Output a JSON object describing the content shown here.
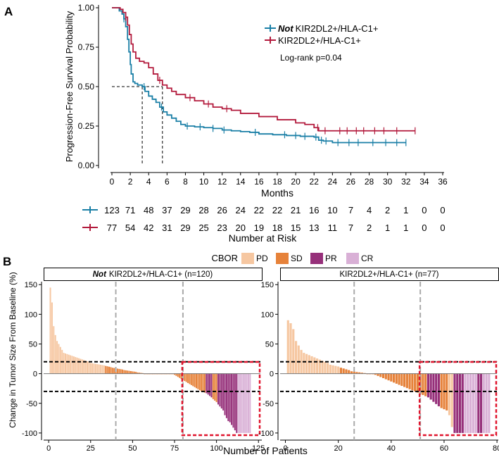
{
  "figure": {
    "panel_a_label": "A",
    "panel_b_label": "B"
  },
  "colors": {
    "not_group": "#1a7fa6",
    "group": "#b31b3d",
    "PD": "#f6c7a1",
    "SD": "#e6823a",
    "PR": "#96307a",
    "CR": "#d9b0d6",
    "highlight": "#e0142d"
  },
  "chart_data": [
    {
      "type": "line",
      "subtype": "kaplan-meier",
      "ylabel": "Progression-Free Survival Probability",
      "xlabel": "Months",
      "xlim": [
        0,
        36
      ],
      "ylim": [
        0,
        1
      ],
      "xticks": [
        "0",
        "2",
        "4",
        "6",
        "8",
        "10",
        "12",
        "14",
        "16",
        "18",
        "20",
        "22",
        "24",
        "26",
        "28",
        "30",
        "32",
        "34",
        "36"
      ],
      "yticks": [
        "0.00",
        "0.25",
        "0.50",
        "0.75",
        "1.00"
      ],
      "legend": {
        "not_prefix": "Not",
        "not_label": "KIR2DL2+/HLA-C1+",
        "label": "KIR2DL2+/HLA-C1+"
      },
      "pvalue_text": "Log-rank p=0.04",
      "medians": [
        3.3,
        5.5
      ],
      "series": [
        {
          "name": "Not KIR2DL2+/HLA-C1+",
          "color_key": "not_group",
          "x": [
            0,
            0.8,
            1.1,
            1.3,
            1.5,
            1.7,
            1.85,
            2.0,
            2.1,
            2.3,
            2.5,
            2.8,
            3.0,
            3.3,
            3.6,
            4.0,
            4.4,
            4.8,
            5.2,
            5.6,
            6.0,
            6.5,
            7.0,
            7.5,
            8.0,
            9.0,
            10.0,
            11.0,
            12.0,
            13.0,
            14.0,
            15.0,
            16.0,
            17.5,
            19.0,
            20.5,
            22.0,
            22.5,
            23.0,
            24.0,
            26.0,
            28.0,
            30.0,
            32.0
          ],
          "y": [
            1.0,
            0.98,
            0.96,
            0.93,
            0.88,
            0.8,
            0.72,
            0.64,
            0.58,
            0.53,
            0.52,
            0.51,
            0.51,
            0.5,
            0.47,
            0.44,
            0.42,
            0.4,
            0.37,
            0.34,
            0.32,
            0.3,
            0.28,
            0.26,
            0.25,
            0.245,
            0.24,
            0.235,
            0.225,
            0.22,
            0.215,
            0.21,
            0.2,
            0.195,
            0.19,
            0.185,
            0.18,
            0.16,
            0.155,
            0.145,
            0.145,
            0.145,
            0.145,
            0.145
          ],
          "censor_x": [
            1.3,
            3.5,
            5.4,
            8.2,
            9.6,
            11.0,
            12.2,
            15.6,
            18.8,
            20.0,
            21.0,
            22.2,
            22.8,
            23.3,
            24.6,
            25.8,
            26.8,
            28.4,
            29.8,
            31.0,
            32.0
          ]
        },
        {
          "name": "KIR2DL2+/HLA-C1+",
          "color_key": "group",
          "x": [
            0,
            0.9,
            1.2,
            1.5,
            1.7,
            1.9,
            2.1,
            2.3,
            2.6,
            3.0,
            3.5,
            4.0,
            4.5,
            5.0,
            5.5,
            6.0,
            6.5,
            7.0,
            8.0,
            9.0,
            10.0,
            11.0,
            12.0,
            13.0,
            14.0,
            16.0,
            18.0,
            20.0,
            21.0,
            22.0,
            22.5,
            24.0,
            26.0,
            28.0,
            30.0,
            33.0
          ],
          "y": [
            1.0,
            0.99,
            0.97,
            0.94,
            0.89,
            0.83,
            0.77,
            0.72,
            0.68,
            0.66,
            0.65,
            0.62,
            0.58,
            0.54,
            0.51,
            0.49,
            0.47,
            0.45,
            0.43,
            0.41,
            0.39,
            0.37,
            0.36,
            0.35,
            0.33,
            0.31,
            0.29,
            0.27,
            0.26,
            0.24,
            0.22,
            0.22,
            0.22,
            0.22,
            0.22,
            0.22
          ],
          "censor_x": [
            1.5,
            5.2,
            8.5,
            10.5,
            12.5,
            22.4,
            23.2,
            24.8,
            25.6,
            26.6,
            27.4,
            28.6,
            29.6,
            31.0,
            33.0
          ]
        }
      ],
      "risk_table": {
        "title": "Number at Risk",
        "rows": [
          {
            "color_key": "not_group",
            "values": [
              "123",
              "71",
              "48",
              "37",
              "29",
              "28",
              "26",
              "24",
              "22",
              "22",
              "21",
              "16",
              "10",
              "7",
              "4",
              "2",
              "1",
              "0",
              "0"
            ]
          },
          {
            "color_key": "group",
            "values": [
              "77",
              "54",
              "42",
              "31",
              "29",
              "25",
              "23",
              "20",
              "19",
              "18",
              "15",
              "13",
              "11",
              "7",
              "2",
              "1",
              "1",
              "0",
              "0"
            ]
          }
        ]
      }
    },
    {
      "type": "bar",
      "subtype": "waterfall",
      "legend_title": "CBOR",
      "legend_items": [
        "PD",
        "SD",
        "PR",
        "CR"
      ],
      "ylabel": "Change in Tumor Size From Baseline (%)",
      "xlabel": "Number of Patients",
      "reference_lines": [
        20,
        -30
      ],
      "panels": [
        {
          "title_prefix": "Not",
          "title_rest": "KIR2DL2+/HLA-C1+ (n=120)",
          "n": 120,
          "xlim": [
            -3,
            127
          ],
          "ylim": [
            -112,
            155
          ],
          "xticks": [
            "0",
            "25",
            "50",
            "75",
            "100",
            "125"
          ],
          "yticks": [
            "150",
            "100",
            "50",
            "0",
            "-50",
            "-100"
          ],
          "vlines": [
            40,
            80
          ],
          "highlight_from": 80,
          "segments": [
            {
              "from": 1,
              "to": 1,
              "start": 145,
              "end": 145,
              "cls": "PD"
            },
            {
              "from": 2,
              "to": 2,
              "start": 120,
              "end": 120,
              "cls": "PD"
            },
            {
              "from": 3,
              "to": 4,
              "start": 80,
              "end": 65,
              "cls": "PD"
            },
            {
              "from": 5,
              "to": 8,
              "start": 55,
              "end": 40,
              "cls": "PD"
            },
            {
              "from": 9,
              "to": 24,
              "start": 35,
              "end": 20,
              "cls": "PD"
            },
            {
              "from": 25,
              "to": 33,
              "start": 18,
              "end": 14,
              "cls": "PD"
            },
            {
              "from": 34,
              "to": 37,
              "start": 13,
              "end": 11,
              "cls": "SD"
            },
            {
              "from": 38,
              "to": 44,
              "start": 10,
              "end": 7,
              "cls": "SD"
            },
            {
              "from": 45,
              "to": 52,
              "start": 6,
              "end": 3,
              "cls": "SD"
            },
            {
              "from": 53,
              "to": 56,
              "start": 2,
              "end": 1,
              "cls": "SD"
            },
            {
              "from": 57,
              "to": 74,
              "start": 0,
              "end": 0,
              "cls": "SD"
            },
            {
              "from": 75,
              "to": 90,
              "start": -2,
              "end": -28,
              "cls": "SD"
            },
            {
              "from": 91,
              "to": 93,
              "start": -30,
              "end": -32,
              "cls": "SD"
            },
            {
              "from": 94,
              "to": 97,
              "start": -33,
              "end": -40,
              "cls": "PR"
            },
            {
              "from": 98,
              "to": 100,
              "start": -43,
              "end": -48,
              "cls": "SD"
            },
            {
              "from": 101,
              "to": 104,
              "start": -52,
              "end": -62,
              "cls": "PR"
            },
            {
              "from": 105,
              "to": 107,
              "start": -70,
              "end": -80,
              "cls": "PR"
            },
            {
              "from": 108,
              "to": 112,
              "start": -82,
              "end": -100,
              "cls": "PR"
            },
            {
              "from": 113,
              "to": 120,
              "start": -100,
              "end": -100,
              "cls": "CR"
            }
          ]
        },
        {
          "title_prefix": "",
          "title_rest": "KIR2DL2+/HLA-C1+ (n=77)",
          "n": 77,
          "xlim": [
            -2,
            80.5
          ],
          "ylim": [
            -112,
            155
          ],
          "xticks": [
            "0",
            "20",
            "40",
            "60",
            "80"
          ],
          "yticks": [
            "150",
            "100",
            "50",
            "0",
            "-50",
            "-100"
          ],
          "vlines": [
            26,
            51
          ],
          "highlight_from": 51,
          "segments": [
            {
              "from": 1,
              "to": 1,
              "start": 90,
              "end": 90,
              "cls": "PD"
            },
            {
              "from": 2,
              "to": 2,
              "start": 85,
              "end": 85,
              "cls": "PD"
            },
            {
              "from": 3,
              "to": 3,
              "start": 75,
              "end": 75,
              "cls": "PD"
            },
            {
              "from": 4,
              "to": 6,
              "start": 55,
              "end": 40,
              "cls": "PD"
            },
            {
              "from": 7,
              "to": 16,
              "start": 35,
              "end": 18,
              "cls": "PD"
            },
            {
              "from": 17,
              "to": 20,
              "start": 15,
              "end": 12,
              "cls": "PD"
            },
            {
              "from": 21,
              "to": 24,
              "start": 10,
              "end": 6,
              "cls": "SD"
            },
            {
              "from": 25,
              "to": 30,
              "start": 4,
              "end": 1,
              "cls": "SD"
            },
            {
              "from": 31,
              "to": 33,
              "start": 0,
              "end": 0,
              "cls": "SD"
            },
            {
              "from": 34,
              "to": 49,
              "start": -2,
              "end": -30,
              "cls": "SD"
            },
            {
              "from": 50,
              "to": 53,
              "start": -32,
              "end": -38,
              "cls": "SD"
            },
            {
              "from": 54,
              "to": 58,
              "start": -40,
              "end": -55,
              "cls": "PR"
            },
            {
              "from": 59,
              "to": 61,
              "start": -58,
              "end": -62,
              "cls": "SD"
            },
            {
              "from": 62,
              "to": 63,
              "start": -70,
              "end": -90,
              "cls": "PD"
            },
            {
              "from": 64,
              "to": 67,
              "start": -100,
              "end": -100,
              "cls": "PR"
            },
            {
              "from": 68,
              "to": 72,
              "start": -100,
              "end": -100,
              "cls": "CR"
            },
            {
              "from": 73,
              "to": 74,
              "start": -100,
              "end": -100,
              "cls": "PR"
            },
            {
              "from": 75,
              "to": 77,
              "start": -100,
              "end": -100,
              "cls": "CR"
            }
          ]
        }
      ]
    }
  ]
}
